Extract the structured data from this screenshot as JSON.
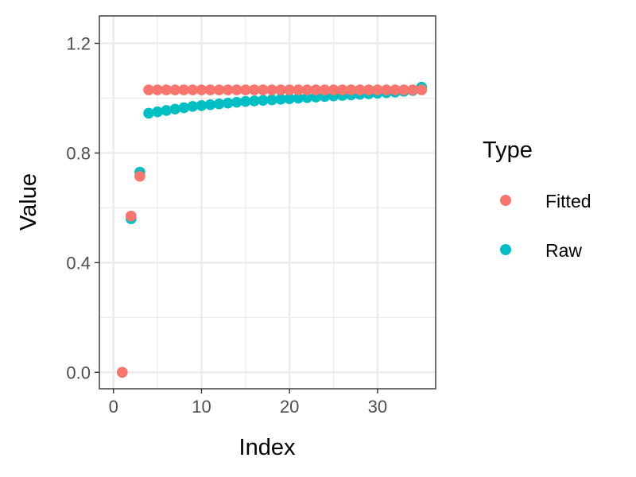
{
  "chart_data": {
    "type": "scatter",
    "xlabel": "Index",
    "ylabel": "Value",
    "xlim": [
      -1.6,
      36.6
    ],
    "ylim": [
      -0.06,
      1.3
    ],
    "x_ticks": [
      0,
      10,
      20,
      30
    ],
    "x_tick_labels": [
      "0",
      "10",
      "20",
      "30"
    ],
    "y_ticks": [
      0.0,
      0.4,
      0.8,
      1.2
    ],
    "y_tick_labels": [
      "0.0",
      "0.4",
      "0.8",
      "1.2"
    ],
    "grid": true,
    "legend": {
      "title": "Type",
      "position": "right"
    },
    "series": [
      {
        "name": "Raw",
        "color": "#00BFC4",
        "x": [
          1,
          2,
          3,
          4,
          5,
          6,
          7,
          8,
          9,
          10,
          11,
          12,
          13,
          14,
          15,
          16,
          17,
          18,
          19,
          20,
          21,
          22,
          23,
          24,
          25,
          26,
          27,
          28,
          29,
          30,
          31,
          32,
          33,
          34,
          35
        ],
        "y": [
          0.0,
          0.56,
          0.73,
          0.945,
          0.95,
          0.955,
          0.96,
          0.965,
          0.97,
          0.973,
          0.976,
          0.979,
          0.982,
          0.985,
          0.988,
          0.99,
          0.992,
          0.994,
          0.996,
          0.998,
          1.0,
          1.002,
          1.004,
          1.006,
          1.008,
          1.01,
          1.012,
          1.014,
          1.016,
          1.018,
          1.02,
          1.022,
          1.025,
          1.028,
          1.04
        ]
      },
      {
        "name": "Fitted",
        "color": "#F8766D",
        "x": [
          1,
          2,
          3,
          4,
          5,
          6,
          7,
          8,
          9,
          10,
          11,
          12,
          13,
          14,
          15,
          16,
          17,
          18,
          19,
          20,
          21,
          22,
          23,
          24,
          25,
          26,
          27,
          28,
          29,
          30,
          31,
          32,
          33,
          34,
          35
        ],
        "y": [
          0.0,
          0.57,
          0.715,
          1.03,
          1.03,
          1.03,
          1.03,
          1.03,
          1.03,
          1.03,
          1.03,
          1.03,
          1.03,
          1.03,
          1.03,
          1.03,
          1.03,
          1.03,
          1.03,
          1.03,
          1.03,
          1.03,
          1.03,
          1.03,
          1.03,
          1.03,
          1.03,
          1.03,
          1.03,
          1.03,
          1.03,
          1.03,
          1.03,
          1.03,
          1.03
        ]
      }
    ],
    "legend_order": [
      "Fitted",
      "Raw"
    ]
  }
}
